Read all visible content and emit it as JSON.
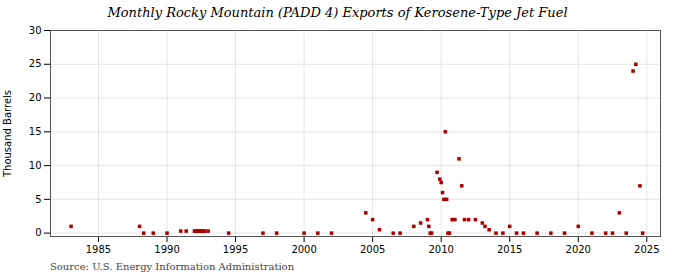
{
  "chart_data": {
    "type": "scatter",
    "title": "Monthly Rocky Mountain (PADD 4) Exports of Kerosene-Type Jet Fuel",
    "ylabel": "Thousand Barrels",
    "source": "Source: U.S. Energy Information Administration",
    "x": [
      1983.0,
      1988.0,
      1988.3,
      1989.0,
      1990.0,
      1991.0,
      1991.4,
      1992.0,
      1992.08,
      1992.17,
      1992.25,
      1992.33,
      1992.42,
      1992.5,
      1992.58,
      1992.67,
      1992.75,
      1993.0,
      1994.5,
      1997.0,
      1998.0,
      2000.0,
      2001.0,
      2002.0,
      2004.5,
      2005.0,
      2005.5,
      2006.5,
      2007.0,
      2008.0,
      2008.5,
      2009.0,
      2009.1,
      2009.2,
      2009.3,
      2009.7,
      2009.9,
      2010.0,
      2010.1,
      2010.2,
      2010.3,
      2010.4,
      2010.5,
      2010.6,
      2010.8,
      2011.0,
      2011.3,
      2011.5,
      2011.7,
      2012.0,
      2012.5,
      2013.0,
      2013.2,
      2013.5,
      2014.0,
      2014.5,
      2015.0,
      2015.5,
      2016.0,
      2017.0,
      2018.0,
      2019.0,
      2020.0,
      2021.0,
      2022.0,
      2022.5,
      2023.0,
      2023.5,
      2024.0,
      2024.2,
      2024.5,
      2024.7
    ],
    "values": [
      1.0,
      1.0,
      0.0,
      0.0,
      0.0,
      0.3,
      0.3,
      0.3,
      0.3,
      0.3,
      0.3,
      0.3,
      0.3,
      0.3,
      0.3,
      0.3,
      0.3,
      0.3,
      0.0,
      0.0,
      0.0,
      0.0,
      0.0,
      0.0,
      3.0,
      2.0,
      0.5,
      0.0,
      0.0,
      1.0,
      1.5,
      2.0,
      1.0,
      0.0,
      0.0,
      9.0,
      8.0,
      7.5,
      6.0,
      5.0,
      15.0,
      5.0,
      0.0,
      0.0,
      2.0,
      2.0,
      11.0,
      7.0,
      2.0,
      2.0,
      2.0,
      1.5,
      1.0,
      0.5,
      0.0,
      0.0,
      1.0,
      0.0,
      0.0,
      0.0,
      0.0,
      0.0,
      1.0,
      0.0,
      0.0,
      0.0,
      3.0,
      0.0,
      24.0,
      25.0,
      7.0,
      0.0
    ],
    "color": "#aa0000",
    "marker": "square",
    "xlim": [
      1981.5,
      2026
    ],
    "xticks": [
      1985,
      1990,
      1995,
      2000,
      2005,
      2010,
      2015,
      2020,
      2025
    ],
    "ylim": [
      -0.5,
      30
    ],
    "yticks": [
      0,
      5,
      10,
      15,
      20,
      25,
      30
    ],
    "grid": true
  }
}
